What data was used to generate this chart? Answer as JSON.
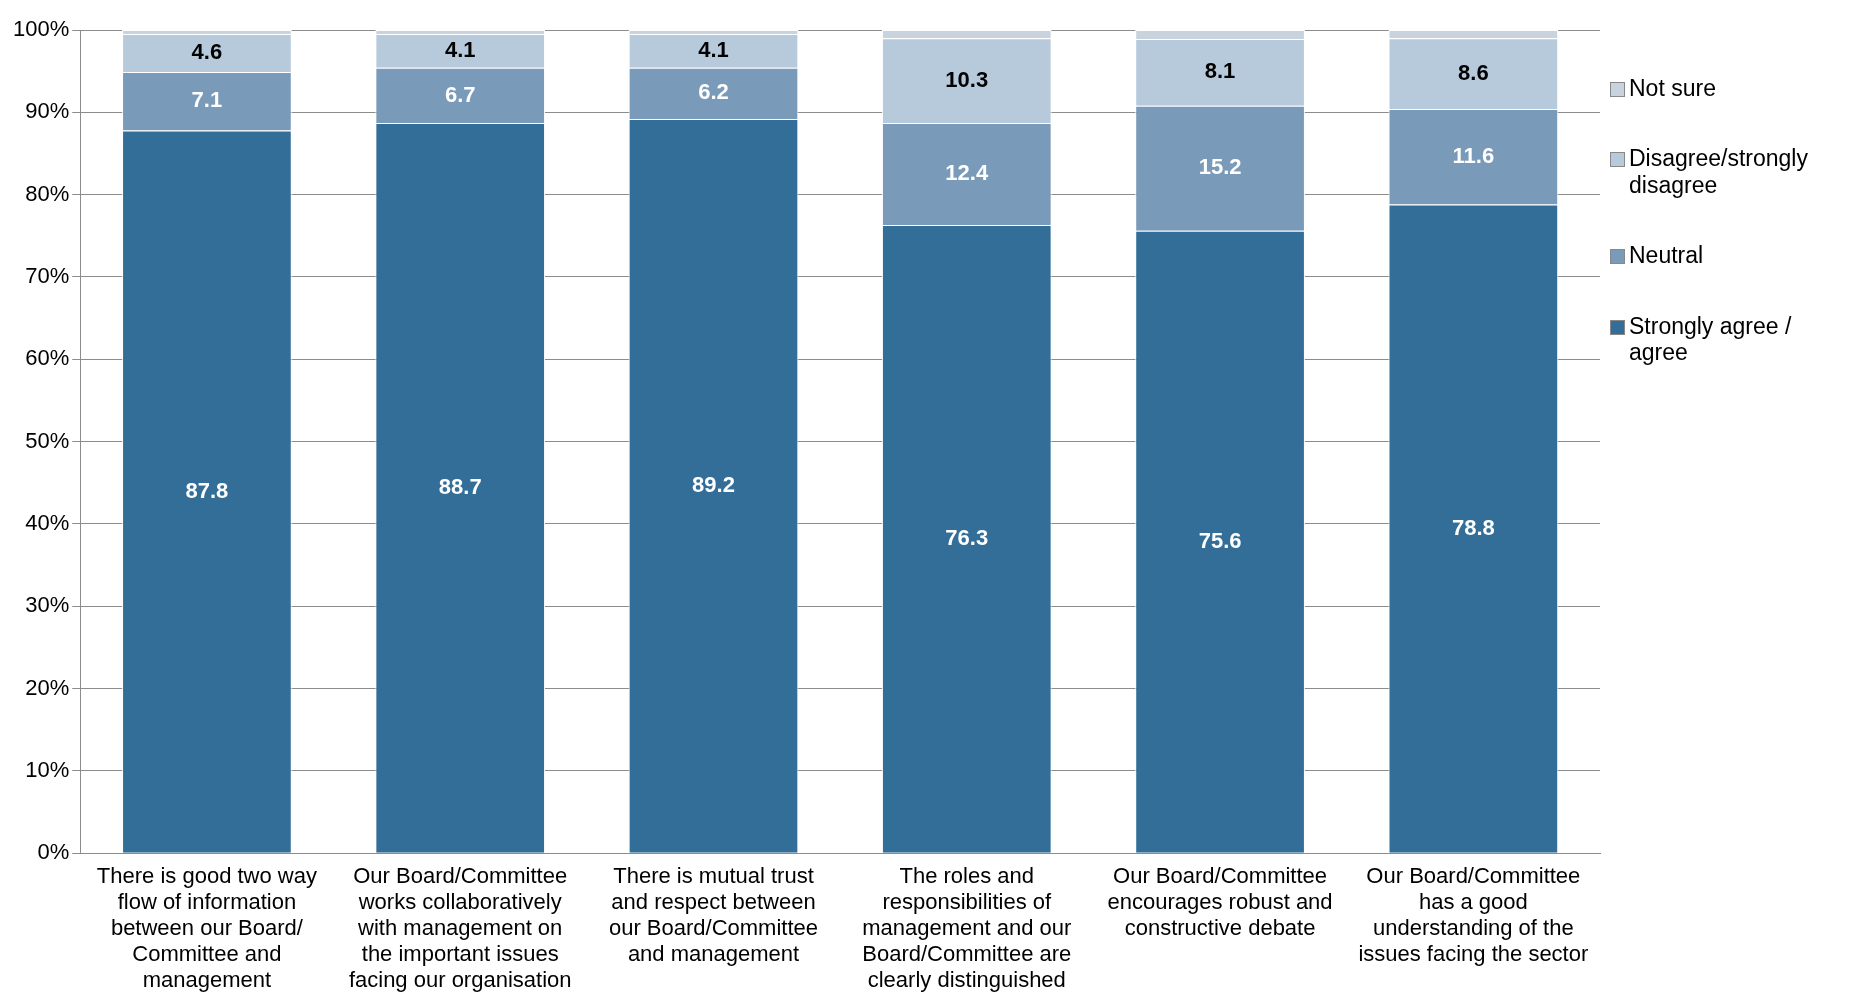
{
  "chart_data": {
    "type": "bar",
    "stacked": true,
    "categories": [
      "There is good two way flow of information between our Board/ Committee and management",
      "Our Board/Committee works collaboratively with management on the important issues facing our organisation",
      "There is mutual trust and respect between our Board/Committee and management",
      "The roles and responsibilities of management and our Board/Committee are clearly distinguished",
      "Our Board/Committee encourages robust and constructive debate",
      "Our Board/Committee has a good understanding of the issues facing the sector"
    ],
    "series": [
      {
        "name": "Strongly agree / agree",
        "color": "#336e99",
        "values": [
          87.8,
          88.7,
          89.2,
          76.3,
          75.6,
          78.8
        ],
        "value_labels": [
          "87.8",
          "88.7",
          "89.2",
          "76.3",
          "75.6",
          "78.8"
        ]
      },
      {
        "name": "Neutral",
        "color": "#7a9aba",
        "values": [
          7.1,
          6.7,
          6.2,
          12.4,
          15.2,
          11.6
        ],
        "value_labels": [
          "7.1",
          "6.7",
          "6.2",
          "12.4",
          "15.2",
          "11.6"
        ]
      },
      {
        "name": "Disagree/strongly disagree",
        "color": "#b7cadc",
        "values": [
          4.6,
          4.1,
          4.1,
          10.3,
          8.1,
          8.6
        ],
        "value_labels": [
          "4.6",
          "4.1",
          "4.1",
          "10.3",
          "8.1",
          "8.6"
        ]
      },
      {
        "name": "Not sure",
        "color": "#c9d3dd",
        "values": [
          0.5,
          0.5,
          0.5,
          1.0,
          1.1,
          1.0
        ],
        "value_labels": [
          null,
          null,
          null,
          null,
          null,
          null
        ]
      }
    ],
    "ylim": [
      0,
      100
    ],
    "yticks": [
      {
        "value": 0,
        "label": "0%"
      },
      {
        "value": 10,
        "label": "10%"
      },
      {
        "value": 20,
        "label": "20%"
      },
      {
        "value": 30,
        "label": "30%"
      },
      {
        "value": 40,
        "label": "40%"
      },
      {
        "value": 50,
        "label": "50%"
      },
      {
        "value": 60,
        "label": "60%"
      },
      {
        "value": 70,
        "label": "70%"
      },
      {
        "value": 80,
        "label": "80%"
      },
      {
        "value": 90,
        "label": "90%"
      },
      {
        "value": 100,
        "label": "100%"
      }
    ],
    "grid": "y",
    "legend": "right"
  }
}
